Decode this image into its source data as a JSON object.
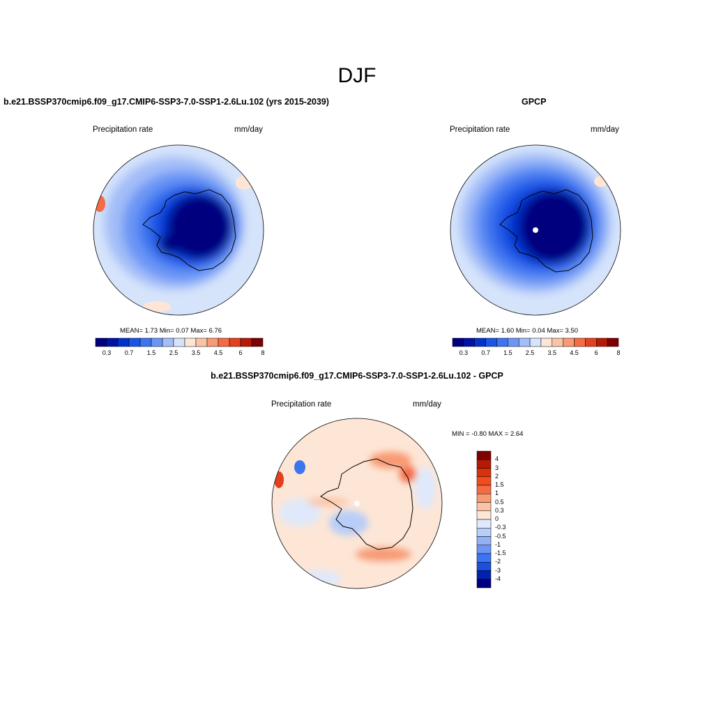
{
  "page": {
    "title": "DJF"
  },
  "panels": [
    {
      "id": "model",
      "title": "b.e21.BSSP370cmip6.f09_g17.CMIP6-SSP3-7.0-SSP1-2.6Lu.102 (yrs 2015-2039)",
      "left_label": "Precipitation rate",
      "right_label": "mm/day",
      "stats": "MEAN=   1.73  Min=   0.07  Max=   6.76"
    },
    {
      "id": "obs",
      "title": "GPCP",
      "left_label": "Precipitation rate",
      "right_label": "mm/day",
      "stats": "MEAN=   1.60  Min=   0.04  Max=   3.50"
    },
    {
      "id": "diff",
      "title": "b.e21.BSSP370cmip6.f09_g17.CMIP6-SSP3-7.0-SSP1-2.6Lu.102 - GPCP",
      "left_label": "Precipitation rate",
      "right_label": "mm/day",
      "stats": "MIN =  -0.80 MAX =   2.64"
    }
  ],
  "colorbar_horizontal": {
    "colors": [
      "#00007f",
      "#0011a8",
      "#0033cc",
      "#1a55e6",
      "#3d74f0",
      "#6b96f5",
      "#a3bdf8",
      "#d6e4fb",
      "#fde6d6",
      "#fbc3a6",
      "#f89a73",
      "#f56b44",
      "#e5401e",
      "#b51a06",
      "#7f0000"
    ],
    "tick_labels": [
      "0.3",
      "0.7",
      "1.5",
      "2.5",
      "3.5",
      "4.5",
      "6",
      "8"
    ]
  },
  "colorbar_vertical": {
    "colors": [
      "#7f0000",
      "#b51a06",
      "#d9300e",
      "#f04c1e",
      "#f56b44",
      "#f89a73",
      "#fbc3a6",
      "#fde6d6",
      "#dfe9fb",
      "#b8cdf8",
      "#94b1f4",
      "#6b96f5",
      "#3d74f0",
      "#1a4fe0",
      "#0022b0",
      "#00007f"
    ],
    "tick_labels": [
      "4",
      "3",
      "2",
      "1.5",
      "1",
      "0.5",
      "0.3",
      "0",
      "-0.3",
      "-0.5",
      "-1",
      "-1.5",
      "-2",
      "-3",
      "-4"
    ]
  }
}
